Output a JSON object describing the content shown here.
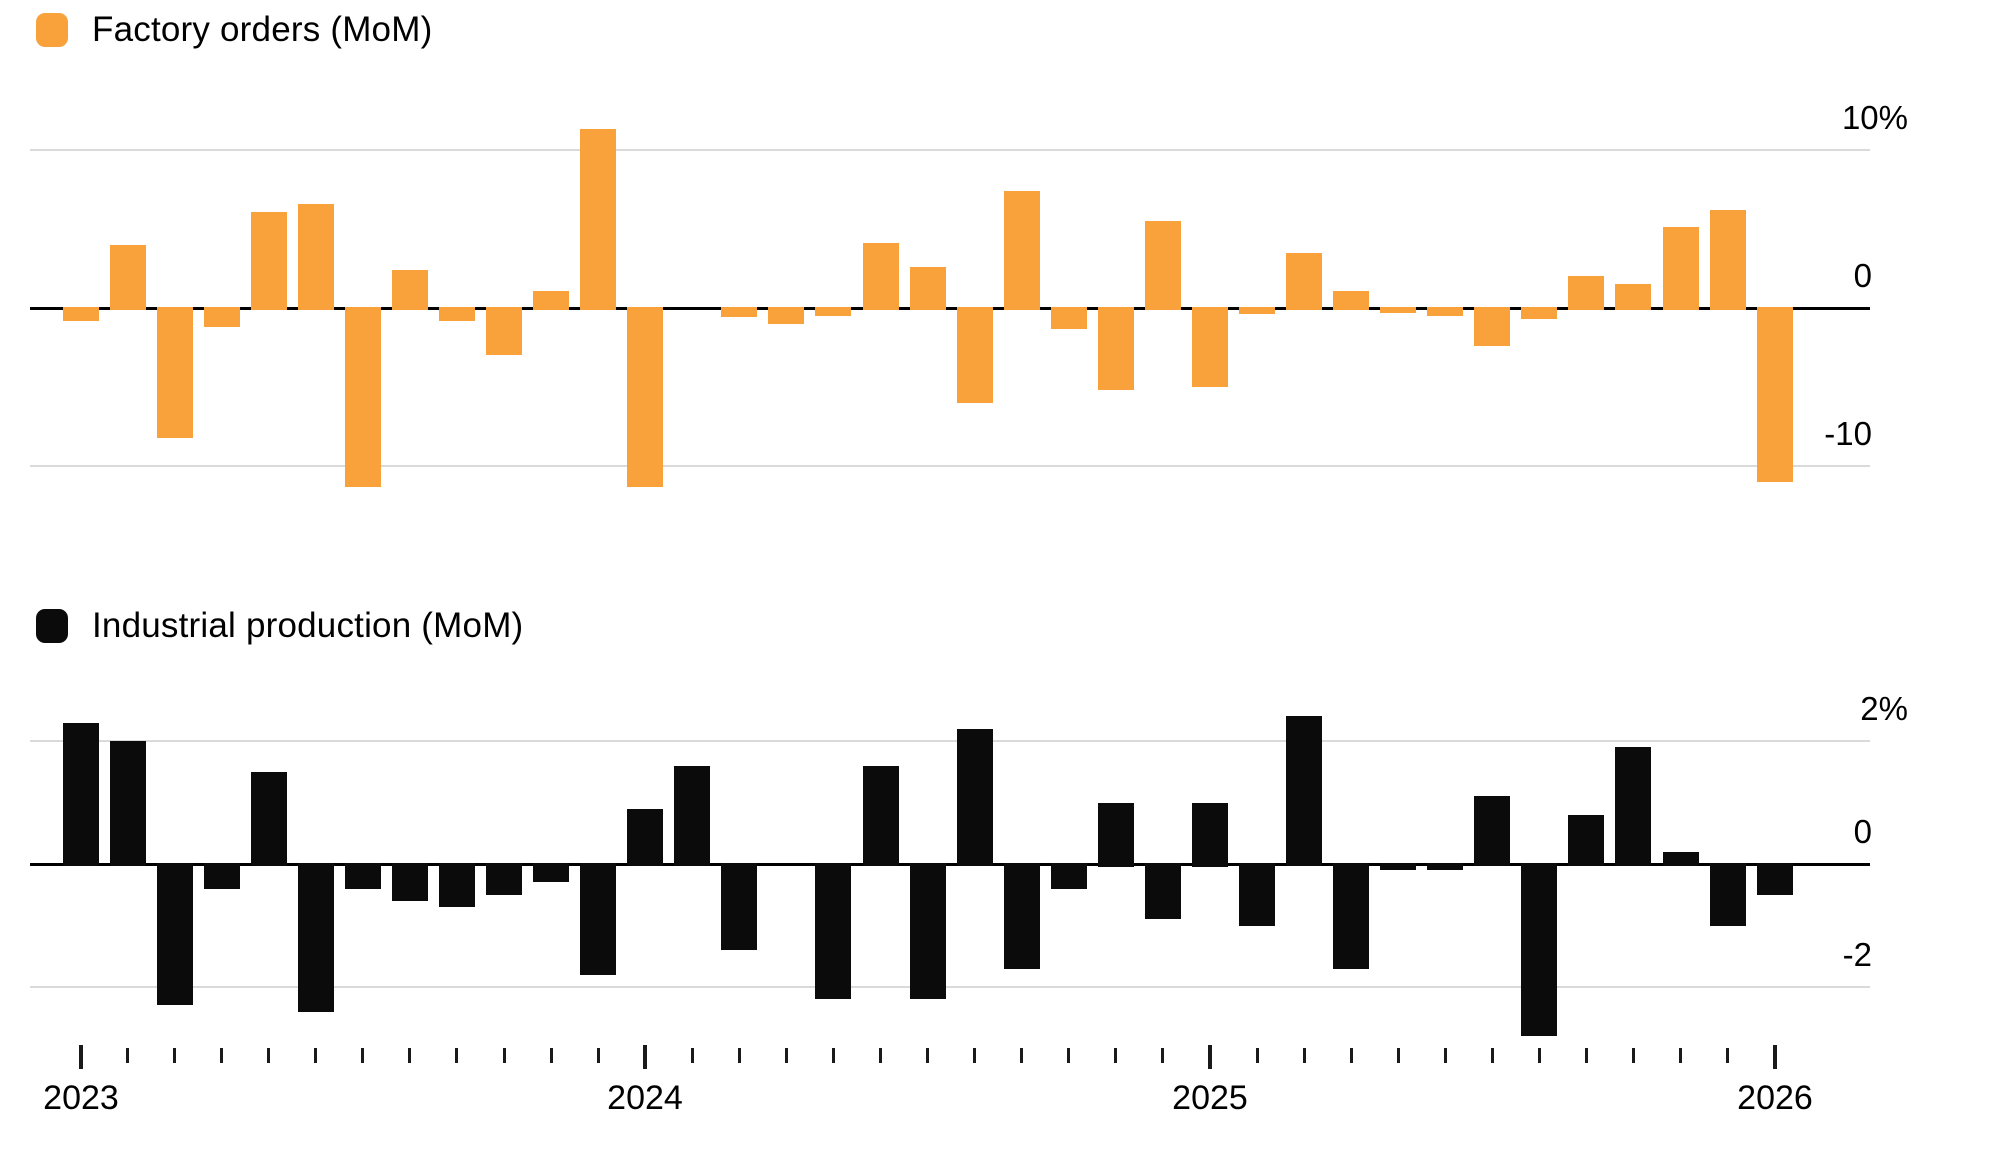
{
  "chart_data": [
    {
      "type": "bar",
      "title": "Factory orders (MoM)",
      "series_color": "#F9A23C",
      "unit": "%",
      "legend_position": "top-left",
      "grid": true,
      "ylabel_position": "right",
      "yticks": [
        {
          "value": 10,
          "label": "10%"
        },
        {
          "value": 0,
          "label": "0"
        },
        {
          "value": -10,
          "label": "-10"
        }
      ],
      "ylim": [
        -12.5,
        12.5
      ],
      "categories": [
        "Jan 2023",
        "Feb 2023",
        "Mar 2023",
        "Apr 2023",
        "May 2023",
        "Jun 2023",
        "Jul 2023",
        "Aug 2023",
        "Sep 2023",
        "Oct 2023",
        "Nov 2023",
        "Dec 2023",
        "Jan 2024",
        "Feb 2024",
        "Mar 2024",
        "Apr 2024",
        "May 2024",
        "Jun 2024",
        "Jul 2024",
        "Aug 2024",
        "Sep 2024",
        "Oct 2024",
        "Nov 2024",
        "Dec 2024",
        "Jan 2025",
        "Feb 2025",
        "Mar 2025",
        "Apr 2025",
        "May 2025",
        "Jun 2025",
        "Jul 2025",
        "Aug 2025",
        "Sep 2025",
        "Oct 2025",
        "Nov 2025",
        "Dec 2025",
        "Jan 2026"
      ],
      "values": [
        -0.8,
        4.0,
        -8.2,
        -1.2,
        6.1,
        6.6,
        -11.3,
        2.4,
        -0.8,
        -3.0,
        1.1,
        11.3,
        -11.3,
        0.0,
        -0.6,
        -1.0,
        -0.5,
        4.1,
        2.6,
        -6.0,
        7.4,
        -1.3,
        -5.2,
        5.5,
        -5.0,
        -0.4,
        3.5,
        1.1,
        -0.3,
        -0.5,
        -2.4,
        -0.7,
        2.0,
        1.5,
        5.1,
        6.2,
        -11.0
      ]
    },
    {
      "type": "bar",
      "title": "Industrial production (MoM)",
      "series_color": "#0b0b0b",
      "unit": "%",
      "legend_position": "top-left",
      "grid": true,
      "ylabel_position": "right",
      "yticks": [
        {
          "value": 2,
          "label": "2%"
        },
        {
          "value": 0,
          "label": "0"
        },
        {
          "value": -2,
          "label": "-2"
        }
      ],
      "ylim": [
        -3.2,
        2.6
      ],
      "categories": [
        "Jan 2023",
        "Feb 2023",
        "Mar 2023",
        "Apr 2023",
        "May 2023",
        "Jun 2023",
        "Jul 2023",
        "Aug 2023",
        "Sep 2023",
        "Oct 2023",
        "Nov 2023",
        "Dec 2023",
        "Jan 2024",
        "Feb 2024",
        "Mar 2024",
        "Apr 2024",
        "May 2024",
        "Jun 2024",
        "Jul 2024",
        "Aug 2024",
        "Sep 2024",
        "Oct 2024",
        "Nov 2024",
        "Dec 2024",
        "Jan 2025",
        "Feb 2025",
        "Mar 2025",
        "Apr 2025",
        "May 2025",
        "Jun 2025",
        "Jul 2025",
        "Aug 2025",
        "Sep 2025",
        "Oct 2025",
        "Nov 2025",
        "Dec 2025",
        "Jan 2026"
      ],
      "values": [
        2.3,
        2.0,
        -2.3,
        -0.4,
        1.5,
        -2.4,
        -0.4,
        -0.6,
        -0.7,
        -0.5,
        -0.3,
        -1.8,
        0.9,
        1.6,
        -1.4,
        0.0,
        -2.2,
        1.6,
        -2.2,
        2.2,
        -1.7,
        -0.4,
        1.0,
        -0.9,
        1.0,
        -1.0,
        2.4,
        -1.7,
        -0.1,
        -0.1,
        1.1,
        -2.8,
        0.8,
        1.9,
        0.2,
        -1.0,
        -0.5
      ]
    }
  ],
  "x_axis": {
    "years": [
      {
        "label": "2023",
        "month_index": 0
      },
      {
        "label": "2024",
        "month_index": 12
      },
      {
        "label": "2025",
        "month_index": 24
      },
      {
        "label": "2026",
        "month_index": 36
      }
    ]
  },
  "colors": {
    "factory_orders_bar": "#F9A23C",
    "industrial_production_bar": "#0b0b0b",
    "gridline": "#dadada",
    "zero_line": "#000000",
    "text": "#000000",
    "background": "#ffffff"
  }
}
